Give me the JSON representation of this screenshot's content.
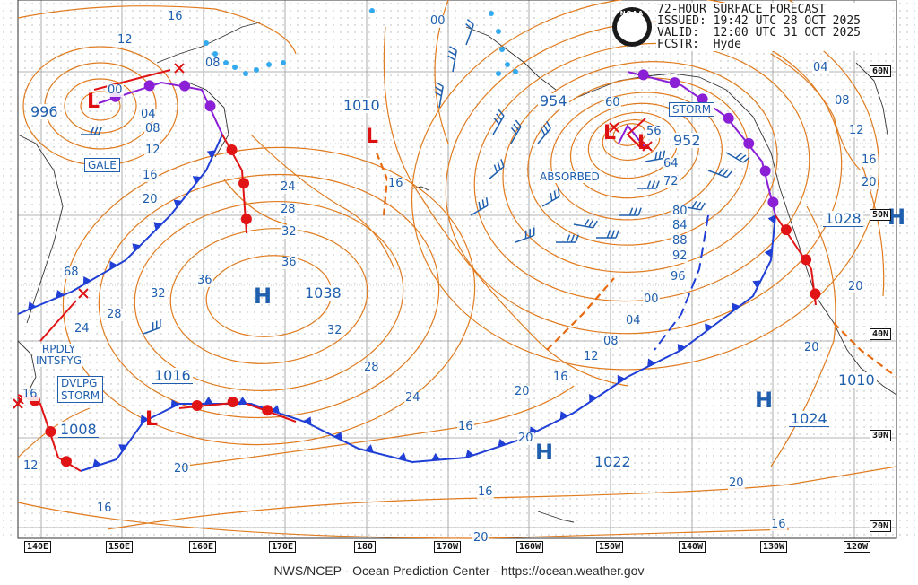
{
  "header": {
    "line1": "72-HOUR SURFACE FORECAST",
    "line2": "ISSUED: 19:42 UTC 28 OCT 2025",
    "line3": "VALID:  12:00 UTC 31 OCT 2025",
    "line4": "FCSTR:  Hyde"
  },
  "logo_text": "NOAA",
  "footer": "NWS/NCEP - Ocean Prediction Center - https://ocean.weather.gov",
  "colors": {
    "isobar": "#e07b1f",
    "label": "#1f5fae",
    "cold_front": "#1f3fd6",
    "warm_front": "#e01414",
    "occluded_front": "#8a1fd6",
    "low": "#dd1111",
    "high": "#1f5fae",
    "grid": "#9a9a9a"
  },
  "lon_labels": [
    "140E",
    "150E",
    "160E",
    "170E",
    "180",
    "170W",
    "160W",
    "150W",
    "140W",
    "130W",
    "120W"
  ],
  "lat_labels": [
    "60N",
    "50N",
    "40N",
    "30N",
    "20N"
  ],
  "pressure_centers": [
    {
      "kind": "L",
      "value": "996"
    },
    {
      "kind": "L",
      "value": "1010"
    },
    {
      "kind": "L",
      "value": "954"
    },
    {
      "kind": "L",
      "value": "952"
    },
    {
      "kind": "H",
      "value": "1038"
    },
    {
      "kind": "H",
      "value": "1016"
    },
    {
      "kind": "L",
      "value": "1008"
    },
    {
      "kind": "H",
      "value": "1022"
    },
    {
      "kind": "H",
      "value": "1024"
    },
    {
      "kind": "H",
      "value": "1028"
    },
    {
      "kind": "L",
      "value": "1010"
    }
  ],
  "warnings": {
    "gale": "GALE",
    "storm_ne": "STORM",
    "dvlpg_storm": "DVLPG\nSTORM",
    "rpdly": "RPDLY\nINTSFYG",
    "absorbed": "ABSORBED"
  },
  "isobar_labels": [
    "16",
    "12",
    "08",
    "00",
    "04",
    "08",
    "12",
    "16",
    "20",
    "24",
    "28",
    "32",
    "36",
    "36",
    "32",
    "28",
    "24",
    "20",
    "16",
    "20",
    "16",
    "12",
    "08",
    "04",
    "00",
    "96",
    "92",
    "88",
    "84",
    "80",
    "72",
    "64",
    "56",
    "60",
    "00",
    "16",
    "04",
    "08",
    "12",
    "16",
    "20",
    "20",
    "20",
    "20",
    "16",
    "16",
    "20",
    "68",
    "24",
    "28",
    "32",
    "12",
    "16",
    "20",
    "16"
  ]
}
